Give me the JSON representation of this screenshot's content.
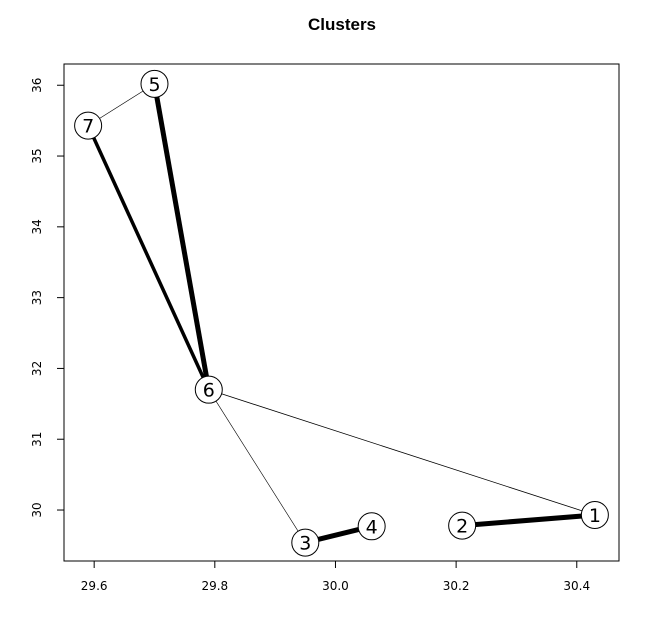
{
  "chart_data": {
    "type": "network",
    "title": "Clusters",
    "xlabel": "",
    "ylabel": "",
    "xlim": [
      29.55,
      30.47
    ],
    "ylim": [
      29.28,
      36.3
    ],
    "x_ticks": [
      29.6,
      29.8,
      30.0,
      30.2,
      30.4
    ],
    "x_tick_labels": [
      "29.6",
      "29.8",
      "30.0",
      "30.2",
      "30.4"
    ],
    "y_ticks": [
      30,
      31,
      32,
      33,
      34,
      35,
      36
    ],
    "y_tick_labels": [
      "30",
      "31",
      "32",
      "33",
      "34",
      "35",
      "36"
    ],
    "grid": false,
    "nodes": [
      {
        "label": "1",
        "x": 30.43,
        "y": 29.93
      },
      {
        "label": "2",
        "x": 30.21,
        "y": 29.78
      },
      {
        "label": "3",
        "x": 29.95,
        "y": 29.54
      },
      {
        "label": "4",
        "x": 30.06,
        "y": 29.77
      },
      {
        "label": "5",
        "x": 29.7,
        "y": 36.02
      },
      {
        "label": "6",
        "x": 29.79,
        "y": 31.7
      },
      {
        "label": "7",
        "x": 29.59,
        "y": 35.43
      }
    ],
    "edges": [
      {
        "from": "1",
        "to": "2",
        "weight": 5
      },
      {
        "from": "3",
        "to": "4",
        "weight": 5
      },
      {
        "from": "5",
        "to": "6",
        "weight": 5
      },
      {
        "from": "6",
        "to": "7",
        "weight": 3.5
      },
      {
        "from": "5",
        "to": "7",
        "weight": 0.6
      },
      {
        "from": "6",
        "to": "3",
        "weight": 0.6
      },
      {
        "from": "6",
        "to": "1",
        "weight": 0.8
      }
    ]
  }
}
